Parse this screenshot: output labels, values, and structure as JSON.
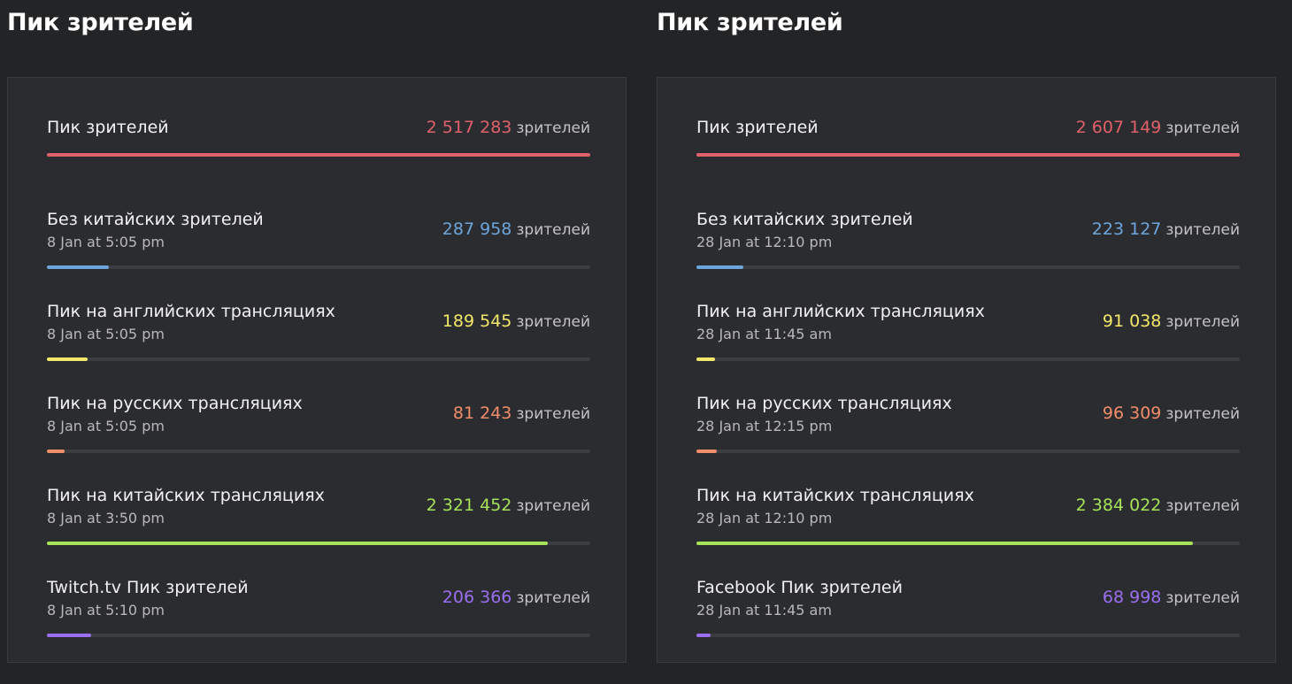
{
  "colors": {
    "total": "#e0616a",
    "no_china": "#6ca6dc",
    "english": "#f3e86a",
    "russian": "#f28d6b",
    "chinese": "#a6e25a",
    "platform": "#9a6ff0"
  },
  "panels": [
    {
      "title": "Пик зрителей",
      "rows": [
        {
          "label": "Пик зрителей",
          "date": "",
          "value": "2 517 283",
          "unit": "зрителей",
          "color": "total",
          "fill": 1.0
        },
        {
          "label": "Без китайских зрителей",
          "date": "8 Jan at 5:05 pm",
          "value": "287 958",
          "unit": "зрителей",
          "color": "no_china",
          "fill": 0.114
        },
        {
          "label": "Пик на английских трансляциях",
          "date": "8 Jan at 5:05 pm",
          "value": "189 545",
          "unit": "зрителей",
          "color": "english",
          "fill": 0.075
        },
        {
          "label": "Пик на русских трансляциях",
          "date": "8 Jan at 5:05 pm",
          "value": "81 243",
          "unit": "зрителей",
          "color": "russian",
          "fill": 0.032
        },
        {
          "label": "Пик на китайских трансляциях",
          "date": "8 Jan at 3:50 pm",
          "value": "2 321 452",
          "unit": "зрителей",
          "color": "chinese",
          "fill": 0.922
        },
        {
          "label": "Twitch.tv Пик зрителей",
          "date": "8 Jan at 5:10 pm",
          "value": "206 366",
          "unit": "зрителей",
          "color": "platform",
          "fill": 0.082
        }
      ]
    },
    {
      "title": "Пик зрителей",
      "rows": [
        {
          "label": "Пик зрителей",
          "date": "",
          "value": "2 607 149",
          "unit": "зрителей",
          "color": "total",
          "fill": 1.0
        },
        {
          "label": "Без китайских зрителей",
          "date": "28 Jan at 12:10 pm",
          "value": "223 127",
          "unit": "зрителей",
          "color": "no_china",
          "fill": 0.086
        },
        {
          "label": "Пик на английских трансляциях",
          "date": "28 Jan at 11:45 am",
          "value": "91 038",
          "unit": "зрителей",
          "color": "english",
          "fill": 0.035
        },
        {
          "label": "Пик на русских трансляциях",
          "date": "28 Jan at 12:15 pm",
          "value": "96 309",
          "unit": "зрителей",
          "color": "russian",
          "fill": 0.037
        },
        {
          "label": "Пик на китайских трансляциях",
          "date": "28 Jan at 12:10 pm",
          "value": "2 384 022",
          "unit": "зрителей",
          "color": "chinese",
          "fill": 0.914
        },
        {
          "label": "Facebook Пик зрителей",
          "date": "28 Jan at 11:45 am",
          "value": "68 998",
          "unit": "зрителей",
          "color": "platform",
          "fill": 0.026
        }
      ]
    }
  ]
}
